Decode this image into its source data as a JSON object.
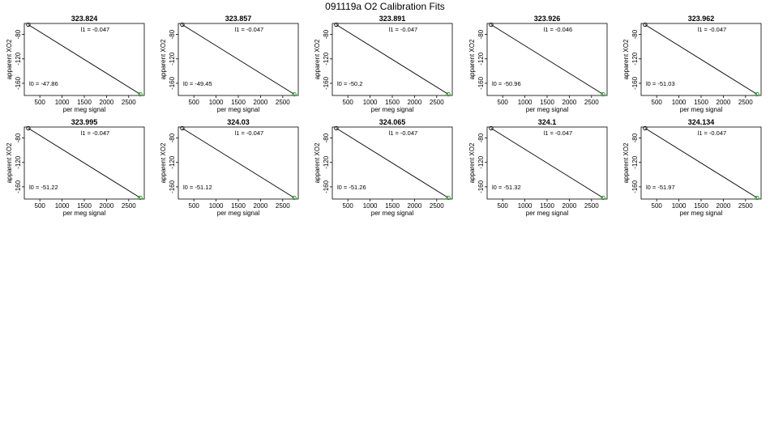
{
  "figure_title": "091119a   O2 Calibration Fits",
  "chart_data": [
    {
      "type": "scatter",
      "title": "323.824",
      "xlabel": "per meg signal",
      "ylabel": "apparent XO2",
      "xlim": [
        150,
        2850
      ],
      "ylim": [
        -180,
        -62
      ],
      "xticks": [
        500,
        1000,
        1500,
        2000,
        2500
      ],
      "yticks": [
        -80,
        -120,
        -160
      ],
      "points": [
        {
          "x": 240,
          "y": -64,
          "color": "#000000"
        },
        {
          "x": 2760,
          "y": -178,
          "color": "#00a000"
        }
      ],
      "fit_line": [
        [
          240,
          -64
        ],
        [
          2760,
          -178
        ]
      ],
      "annotations": {
        "l1": "l1 =  -0.047",
        "l0": "l0 =  -47.86"
      }
    },
    {
      "type": "scatter",
      "title": "323.857",
      "xlabel": "per meg signal",
      "ylabel": "apparent XO2",
      "xlim": [
        150,
        2850
      ],
      "ylim": [
        -180,
        -62
      ],
      "xticks": [
        500,
        1000,
        1500,
        2000,
        2500
      ],
      "yticks": [
        -80,
        -120,
        -160
      ],
      "points": [
        {
          "x": 240,
          "y": -64,
          "color": "#000000"
        },
        {
          "x": 2760,
          "y": -178,
          "color": "#00a000"
        }
      ],
      "fit_line": [
        [
          240,
          -64
        ],
        [
          2760,
          -178
        ]
      ],
      "annotations": {
        "l1": "l1 =  -0.047",
        "l0": "l0 =  -49.45"
      }
    },
    {
      "type": "scatter",
      "title": "323.891",
      "xlabel": "per meg signal",
      "ylabel": "apparent XO2",
      "xlim": [
        150,
        2850
      ],
      "ylim": [
        -180,
        -62
      ],
      "xticks": [
        500,
        1000,
        1500,
        2000,
        2500
      ],
      "yticks": [
        -80,
        -120,
        -160
      ],
      "points": [
        {
          "x": 240,
          "y": -64,
          "color": "#000000"
        },
        {
          "x": 2760,
          "y": -178,
          "color": "#00a000"
        }
      ],
      "fit_line": [
        [
          240,
          -64
        ],
        [
          2760,
          -178
        ]
      ],
      "annotations": {
        "l1": "l1 =  -0.047",
        "l0": "l0 =  -50.2"
      }
    },
    {
      "type": "scatter",
      "title": "323.926",
      "xlabel": "per meg signal",
      "ylabel": "apparent XO2",
      "xlim": [
        150,
        2850
      ],
      "ylim": [
        -180,
        -62
      ],
      "xticks": [
        500,
        1000,
        1500,
        2000,
        2500
      ],
      "yticks": [
        -80,
        -120,
        -160
      ],
      "points": [
        {
          "x": 240,
          "y": -64,
          "color": "#000000"
        },
        {
          "x": 2760,
          "y": -178,
          "color": "#00a000"
        }
      ],
      "fit_line": [
        [
          240,
          -64
        ],
        [
          2760,
          -178
        ]
      ],
      "annotations": {
        "l1": "l1 =  -0.046",
        "l0": "l0 =  -50.96"
      }
    },
    {
      "type": "scatter",
      "title": "323.962",
      "xlabel": "per meg signal",
      "ylabel": "apparent XO2",
      "xlim": [
        150,
        2850
      ],
      "ylim": [
        -180,
        -62
      ],
      "xticks": [
        500,
        1000,
        1500,
        2000,
        2500
      ],
      "yticks": [
        -80,
        -120,
        -160
      ],
      "points": [
        {
          "x": 240,
          "y": -64,
          "color": "#000000"
        },
        {
          "x": 2760,
          "y": -178,
          "color": "#00a000"
        }
      ],
      "fit_line": [
        [
          240,
          -64
        ],
        [
          2760,
          -178
        ]
      ],
      "annotations": {
        "l1": "l1 =  -0.047",
        "l0": "l0 =  -51.03"
      }
    },
    {
      "type": "scatter",
      "title": "323.995",
      "xlabel": "per meg signal",
      "ylabel": "apparent XO2",
      "xlim": [
        150,
        2850
      ],
      "ylim": [
        -180,
        -62
      ],
      "xticks": [
        500,
        1000,
        1500,
        2000,
        2500
      ],
      "yticks": [
        -80,
        -120,
        -160
      ],
      "points": [
        {
          "x": 240,
          "y": -64,
          "color": "#000000"
        },
        {
          "x": 2760,
          "y": -178,
          "color": "#00a000"
        }
      ],
      "fit_line": [
        [
          240,
          -64
        ],
        [
          2760,
          -178
        ]
      ],
      "annotations": {
        "l1": "l1 =  -0.047",
        "l0": "l0 =  -51.22"
      }
    },
    {
      "type": "scatter",
      "title": "324.03",
      "xlabel": "per meg signal",
      "ylabel": "apparent XO2",
      "xlim": [
        150,
        2850
      ],
      "ylim": [
        -180,
        -62
      ],
      "xticks": [
        500,
        1000,
        1500,
        2000,
        2500
      ],
      "yticks": [
        -80,
        -120,
        -160
      ],
      "points": [
        {
          "x": 240,
          "y": -64,
          "color": "#000000"
        },
        {
          "x": 2760,
          "y": -178,
          "color": "#00a000"
        }
      ],
      "fit_line": [
        [
          240,
          -64
        ],
        [
          2760,
          -178
        ]
      ],
      "annotations": {
        "l1": "l1 =  -0.047",
        "l0": "l0 =  -51.12"
      }
    },
    {
      "type": "scatter",
      "title": "324.065",
      "xlabel": "per meg signal",
      "ylabel": "apparent XO2",
      "xlim": [
        150,
        2850
      ],
      "ylim": [
        -180,
        -62
      ],
      "xticks": [
        500,
        1000,
        1500,
        2000,
        2500
      ],
      "yticks": [
        -80,
        -120,
        -160
      ],
      "points": [
        {
          "x": 240,
          "y": -64,
          "color": "#000000"
        },
        {
          "x": 2760,
          "y": -178,
          "color": "#00a000"
        }
      ],
      "fit_line": [
        [
          240,
          -64
        ],
        [
          2760,
          -178
        ]
      ],
      "annotations": {
        "l1": "l1 =  -0.047",
        "l0": "l0 =  -51.26"
      }
    },
    {
      "type": "scatter",
      "title": "324.1",
      "xlabel": "per meg signal",
      "ylabel": "apparent XO2",
      "xlim": [
        150,
        2850
      ],
      "ylim": [
        -180,
        -62
      ],
      "xticks": [
        500,
        1000,
        1500,
        2000,
        2500
      ],
      "yticks": [
        -80,
        -120,
        -160
      ],
      "points": [
        {
          "x": 240,
          "y": -64,
          "color": "#000000"
        },
        {
          "x": 2760,
          "y": -178,
          "color": "#00a000"
        }
      ],
      "fit_line": [
        [
          240,
          -64
        ],
        [
          2760,
          -178
        ]
      ],
      "annotations": {
        "l1": "l1 =  -0.047",
        "l0": "l0 =  -51.32"
      }
    },
    {
      "type": "scatter",
      "title": "324.134",
      "xlabel": "per meg signal",
      "ylabel": "apparent XO2",
      "xlim": [
        150,
        2850
      ],
      "ylim": [
        -180,
        -62
      ],
      "xticks": [
        500,
        1000,
        1500,
        2000,
        2500
      ],
      "yticks": [
        -80,
        -120,
        -160
      ],
      "points": [
        {
          "x": 240,
          "y": -64,
          "color": "#000000"
        },
        {
          "x": 2760,
          "y": -178,
          "color": "#00a000"
        }
      ],
      "fit_line": [
        [
          240,
          -64
        ],
        [
          2760,
          -178
        ]
      ],
      "annotations": {
        "l1": "l1 =  -0.047",
        "l0": "l0 =  -51.97"
      }
    }
  ]
}
